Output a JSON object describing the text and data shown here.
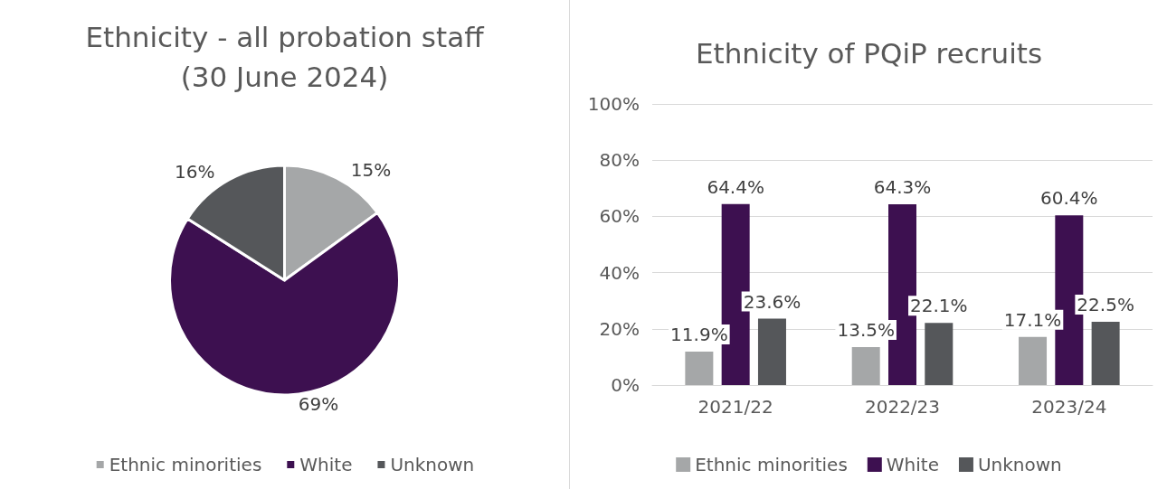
{
  "chart_data": [
    {
      "type": "pie",
      "title": "Ethnicity - all probation staff\n(30 June 2024)",
      "categories": [
        "Ethnic minorities",
        "White",
        "Unknown"
      ],
      "values": [
        15,
        69,
        16
      ],
      "value_labels": [
        "15%",
        "69%",
        "16%"
      ],
      "colors": [
        "#a5a7a8",
        "#3d1050",
        "#55575a"
      ],
      "legend": "bottom"
    },
    {
      "type": "bar",
      "title": "Ethnicity of PQiP recruits",
      "categories": [
        "2021/22",
        "2022/23",
        "2023/24"
      ],
      "series": [
        {
          "name": "Ethnic minorities",
          "color": "#a5a7a8",
          "values": [
            11.9,
            13.5,
            17.1
          ],
          "value_labels": [
            "11.9%",
            "13.5%",
            "17.1%"
          ]
        },
        {
          "name": "White",
          "color": "#3d1050",
          "values": [
            64.4,
            64.3,
            60.4
          ],
          "value_labels": [
            "64.4%",
            "64.3%",
            "60.4%"
          ]
        },
        {
          "name": "Unknown",
          "color": "#55575a",
          "values": [
            23.6,
            22.1,
            22.5
          ],
          "value_labels": [
            "23.6%",
            "22.1%",
            "22.5%"
          ]
        }
      ],
      "ylim": [
        0,
        100
      ],
      "yticks": [
        {
          "value": 0,
          "label": "0%"
        },
        {
          "value": 20,
          "label": "20%"
        },
        {
          "value": 40,
          "label": "40%"
        },
        {
          "value": 60,
          "label": "60%"
        },
        {
          "value": 80,
          "label": "80%"
        },
        {
          "value": 100,
          "label": "100%"
        }
      ],
      "grid": "y",
      "legend": "bottom"
    }
  ]
}
